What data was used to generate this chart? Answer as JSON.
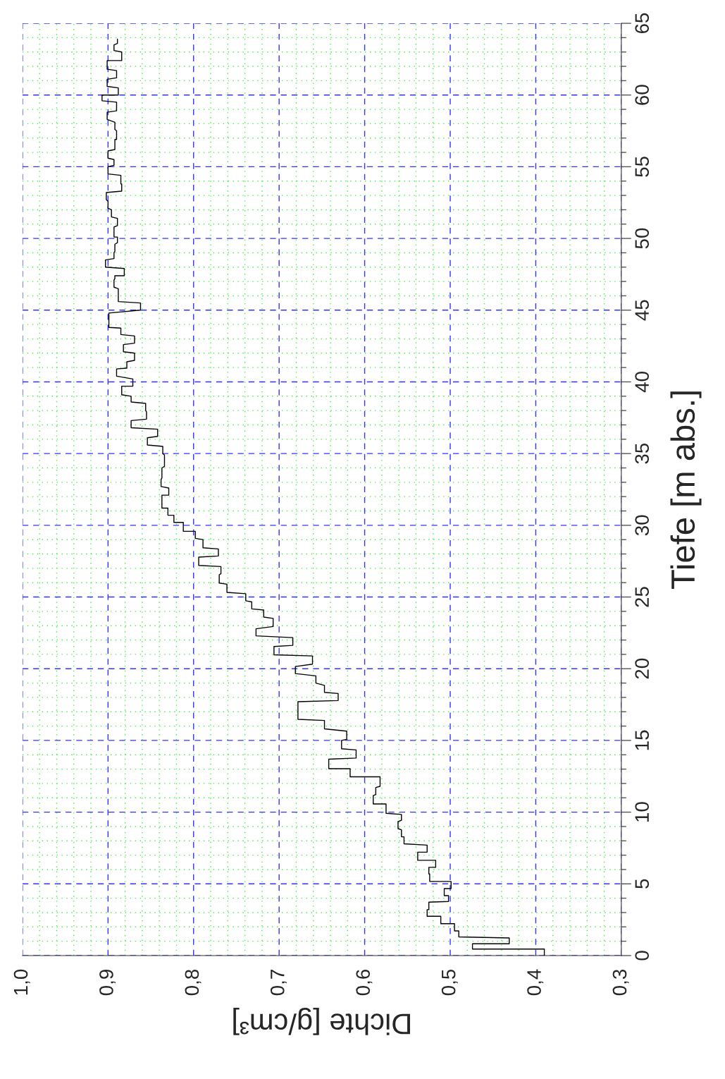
{
  "chart_data": {
    "type": "line",
    "xlabel": "Dichte [g/cm³]",
    "ylabel": "Tiefe [m abs.]",
    "xlim": [
      1.0,
      0.3
    ],
    "ylim": [
      0,
      65
    ],
    "xticks": [
      {
        "value": 1.0,
        "label": "1,0"
      },
      {
        "value": 0.98,
        "label": null
      },
      {
        "value": 0.96,
        "label": null
      },
      {
        "value": 0.94,
        "label": null
      },
      {
        "value": 0.92,
        "label": null
      },
      {
        "value": 0.9,
        "label": "0,9"
      },
      {
        "value": 0.88,
        "label": null
      },
      {
        "value": 0.86,
        "label": null
      },
      {
        "value": 0.84,
        "label": null
      },
      {
        "value": 0.82,
        "label": null
      },
      {
        "value": 0.8,
        "label": "0,8"
      },
      {
        "value": 0.78,
        "label": null
      },
      {
        "value": 0.76,
        "label": null
      },
      {
        "value": 0.74,
        "label": null
      },
      {
        "value": 0.72,
        "label": null
      },
      {
        "value": 0.7,
        "label": "0,7"
      },
      {
        "value": 0.68,
        "label": null
      },
      {
        "value": 0.66,
        "label": null
      },
      {
        "value": 0.64,
        "label": null
      },
      {
        "value": 0.62,
        "label": null
      },
      {
        "value": 0.6,
        "label": "0,6"
      },
      {
        "value": 0.58,
        "label": null
      },
      {
        "value": 0.56,
        "label": null
      },
      {
        "value": 0.54,
        "label": null
      },
      {
        "value": 0.52,
        "label": null
      },
      {
        "value": 0.5,
        "label": "0,5"
      },
      {
        "value": 0.48,
        "label": null
      },
      {
        "value": 0.46,
        "label": null
      },
      {
        "value": 0.44,
        "label": null
      },
      {
        "value": 0.42,
        "label": null
      },
      {
        "value": 0.4,
        "label": "0,4"
      },
      {
        "value": 0.38,
        "label": null
      },
      {
        "value": 0.36,
        "label": null
      },
      {
        "value": 0.34,
        "label": null
      },
      {
        "value": 0.32,
        "label": null
      },
      {
        "value": 0.3,
        "label": "0,3"
      }
    ],
    "yticks": [
      0,
      {
        "value": 1,
        "label": null
      },
      {
        "value": 2,
        "label": null
      },
      {
        "value": 3,
        "label": null
      },
      {
        "value": 4,
        "label": null
      },
      5,
      {
        "value": 6,
        "label": null
      },
      {
        "value": 7,
        "label": null
      },
      {
        "value": 8,
        "label": null
      },
      {
        "value": 9,
        "label": null
      },
      10,
      {
        "value": 11,
        "label": null
      },
      {
        "value": 12,
        "label": null
      },
      {
        "value": 13,
        "label": null
      },
      {
        "value": 14,
        "label": null
      },
      15,
      {
        "value": 16,
        "label": null
      },
      {
        "value": 17,
        "label": null
      },
      {
        "value": 18,
        "label": null
      },
      {
        "value": 19,
        "label": null
      },
      20,
      {
        "value": 21,
        "label": null
      },
      {
        "value": 22,
        "label": null
      },
      {
        "value": 23,
        "label": null
      },
      {
        "value": 24,
        "label": null
      },
      25,
      {
        "value": 26,
        "label": null
      },
      {
        "value": 27,
        "label": null
      },
      {
        "value": 28,
        "label": null
      },
      {
        "value": 29,
        "label": null
      },
      30,
      {
        "value": 31,
        "label": null
      },
      {
        "value": 32,
        "label": null
      },
      {
        "value": 33,
        "label": null
      },
      {
        "value": 34,
        "label": null
      },
      35,
      {
        "value": 36,
        "label": null
      },
      {
        "value": 37,
        "label": null
      },
      {
        "value": 38,
        "label": null
      },
      {
        "value": 39,
        "label": null
      },
      40,
      {
        "value": 41,
        "label": null
      },
      {
        "value": 42,
        "label": null
      },
      {
        "value": 43,
        "label": null
      },
      {
        "value": 44,
        "label": null
      },
      45,
      {
        "value": 46,
        "label": null
      },
      {
        "value": 47,
        "label": null
      },
      {
        "value": 48,
        "label": null
      },
      {
        "value": 49,
        "label": null
      },
      50,
      {
        "value": 51,
        "label": null
      },
      {
        "value": 52,
        "label": null
      },
      {
        "value": 53,
        "label": null
      },
      {
        "value": 54,
        "label": null
      },
      55,
      {
        "value": 56,
        "label": null
      },
      {
        "value": 57,
        "label": null
      },
      {
        "value": 58,
        "label": null
      },
      {
        "value": 59,
        "label": null
      },
      60,
      {
        "value": 61,
        "label": null
      },
      {
        "value": 62,
        "label": null
      },
      {
        "value": 63,
        "label": null
      },
      {
        "value": 64,
        "label": null
      },
      65
    ],
    "grid": true,
    "marker": "none",
    "line_style": "solid",
    "series": [
      {
        "color": "#000000",
        "x": [
          0.39,
          0.39,
          0.474,
          0.474,
          0.431,
          0.431,
          0.49,
          0.49,
          0.495,
          0.495,
          0.511,
          0.511,
          0.527,
          0.527,
          0.525,
          0.525,
          0.502,
          0.502,
          0.507,
          0.507,
          0.499,
          0.499,
          0.524,
          0.524,
          0.525,
          0.525,
          0.517,
          0.517,
          0.538,
          0.538,
          0.527,
          0.527,
          0.554,
          0.554,
          0.557,
          0.557,
          0.561,
          0.561,
          0.557,
          0.557,
          0.575,
          0.575,
          0.59,
          0.59,
          0.587,
          0.587,
          0.582,
          0.582,
          0.617,
          0.617,
          0.642,
          0.642,
          0.61,
          0.61,
          0.627,
          0.627,
          0.621,
          0.621,
          0.647,
          0.647,
          0.678,
          0.678,
          0.631,
          0.631,
          0.647,
          0.647,
          0.657,
          0.657,
          0.681,
          0.681,
          0.661,
          0.661,
          0.706,
          0.706,
          0.684,
          0.684,
          0.727,
          0.727,
          0.707,
          0.707,
          0.718,
          0.718,
          0.732,
          0.732,
          0.739,
          0.739,
          0.761,
          0.761,
          0.77,
          0.77,
          0.768,
          0.768,
          0.794,
          0.794,
          0.771,
          0.771,
          0.789,
          0.789,
          0.798,
          0.798,
          0.812,
          0.812,
          0.823,
          0.823,
          0.83,
          0.83,
          0.837,
          0.837,
          0.829,
          0.829,
          0.838,
          0.838,
          0.837,
          0.837,
          0.834,
          0.834,
          0.836,
          0.836,
          0.854,
          0.854,
          0.842,
          0.842,
          0.873,
          0.873,
          0.855,
          0.855,
          0.856,
          0.856,
          0.873,
          0.873,
          0.884,
          0.884,
          0.871,
          0.871,
          0.89,
          0.89,
          0.878,
          0.878,
          0.869,
          0.869,
          0.882,
          0.882,
          0.869,
          0.869,
          0.885,
          0.885,
          0.899,
          0.899,
          0.862,
          0.862,
          0.888,
          0.888,
          0.893,
          0.893,
          0.892,
          0.892,
          0.881,
          0.881,
          0.903,
          0.903,
          0.893,
          0.893,
          0.892,
          0.892,
          0.889,
          0.889,
          0.893,
          0.893,
          0.889,
          0.889,
          0.896,
          0.896,
          0.9,
          0.9,
          0.902,
          0.902,
          0.884,
          0.884,
          0.885,
          0.885,
          0.9,
          0.9,
          0.893,
          0.893,
          0.9,
          0.9,
          0.892,
          0.892,
          0.89,
          0.89,
          0.892,
          0.892,
          0.901,
          0.901,
          0.89,
          0.89,
          0.907,
          0.907,
          0.888,
          0.888,
          0.901,
          0.901,
          0.89,
          0.89,
          0.901,
          0.901,
          0.884,
          0.884,
          0.893,
          0.893,
          0.889,
          0.889
        ],
        "values": [
          0,
          0.45,
          0.45,
          0.82,
          0.82,
          1.23,
          1.3,
          1.72,
          1.72,
          2.22,
          2.22,
          2.74,
          2.74,
          3.2,
          3.2,
          3.72,
          3.77,
          4.18,
          4.18,
          4.67,
          4.67,
          5.17,
          5.17,
          5.69,
          5.69,
          6.15,
          6.15,
          6.64,
          6.64,
          7.21,
          7.21,
          7.7,
          7.79,
          8.28,
          8.28,
          8.77,
          8.85,
          9.34,
          9.43,
          9.84,
          9.92,
          10.57,
          10.57,
          11.15,
          11.23,
          11.72,
          11.8,
          12.46,
          12.46,
          13.03,
          13.03,
          13.69,
          13.77,
          14.34,
          14.42,
          15.0,
          15.07,
          15.65,
          15.81,
          16.39,
          16.47,
          17.7,
          17.78,
          18.27,
          18.35,
          18.84,
          19.0,
          19.5,
          19.66,
          20.15,
          20.32,
          20.89,
          20.97,
          21.55,
          21.63,
          22.17,
          22.29,
          22.78,
          22.94,
          23.51,
          23.6,
          24.09,
          24.17,
          24.66,
          24.74,
          25.23,
          25.32,
          25.89,
          25.97,
          26.55,
          26.63,
          27.12,
          27.2,
          27.78,
          27.86,
          28.35,
          28.43,
          29.0,
          29.09,
          29.58,
          29.58,
          30.2,
          30.2,
          30.7,
          30.7,
          31.2,
          31.2,
          32.1,
          32.1,
          32.6,
          32.7,
          33.2,
          33.3,
          34.0,
          34.1,
          34.9,
          35.0,
          35.5,
          35.6,
          36.1,
          36.2,
          36.7,
          36.8,
          37.3,
          37.4,
          37.9,
          38.0,
          38.5,
          38.6,
          39.0,
          39.1,
          39.7,
          39.7,
          40.2,
          40.4,
          40.9,
          40.96,
          41.4,
          41.5,
          42.0,
          42.1,
          42.6,
          42.7,
          43.2,
          43.3,
          43.75,
          43.8,
          44.8,
          45.0,
          45.5,
          45.6,
          46.5,
          46.6,
          47.1,
          47.2,
          47.4,
          47.4,
          47.9,
          48.0,
          48.5,
          48.6,
          49.0,
          49.1,
          49.6,
          49.7,
          50.1,
          50.1,
          50.8,
          50.9,
          51.4,
          51.5,
          52.0,
          52.1,
          52.6,
          52.7,
          53.2,
          53.3,
          53.8,
          53.8,
          54.4,
          54.5,
          55.0,
          55.1,
          55.5,
          55.6,
          56.1,
          56.2,
          56.9,
          56.9,
          57.5,
          57.6,
          58.1,
          58.3,
          58.8,
          58.9,
          59.5,
          59.6,
          60.0,
          60.0,
          60.5,
          60.6,
          61.1,
          61.2,
          61.7,
          61.8,
          62.4,
          62.4,
          63.0,
          63.1,
          63.5,
          63.6,
          63.9
        ]
      }
    ]
  }
}
